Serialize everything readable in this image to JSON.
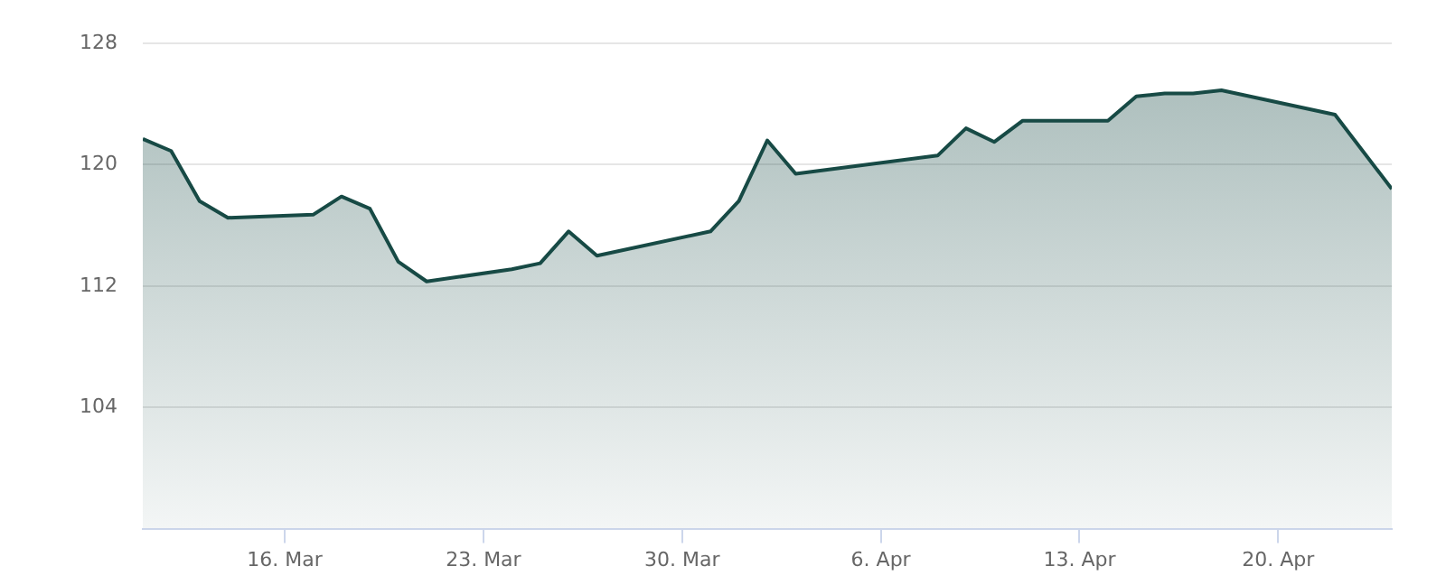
{
  "chart_data": {
    "type": "area",
    "x": [
      "--03-11",
      "--03-12",
      "--03-13",
      "--03-14",
      "--03-17",
      "--03-18",
      "--03-19",
      "--03-20",
      "--03-21",
      "--03-24",
      "--03-25",
      "--03-26",
      "--03-27",
      "--03-31",
      "--04-01",
      "--04-02",
      "--04-03",
      "--04-08",
      "--04-09",
      "--04-10",
      "--04-11",
      "--04-14",
      "--04-15",
      "--04-16",
      "--04-17",
      "--04-18",
      "--04-22",
      "--04-24"
    ],
    "series": [
      {
        "color": "#174a45",
        "values": [
          121.7,
          120.9,
          117.6,
          116.5,
          116.7,
          117.9,
          117.1,
          113.6,
          112.3,
          113.1,
          113.5,
          115.6,
          114.0,
          115.6,
          117.6,
          121.6,
          119.4,
          120.6,
          122.4,
          121.5,
          122.9,
          122.9,
          124.5,
          124.7,
          124.7,
          124.9,
          123.3,
          118.4
        ]
      }
    ],
    "xlim": [
      "--03-11",
      "--04-24"
    ],
    "ylim": [
      96,
      128
    ],
    "xticks": [
      {
        "value": "--03-16",
        "label": "16. Mar"
      },
      {
        "value": "--03-23",
        "label": "23. Mar"
      },
      {
        "value": "--03-30",
        "label": "30. Mar"
      },
      {
        "value": "--04-06",
        "label": "6. Apr"
      },
      {
        "value": "--04-13",
        "label": "13. Apr"
      },
      {
        "value": "--04-20",
        "label": "20. Apr"
      }
    ],
    "yticks": [
      104,
      112,
      120,
      128
    ],
    "grid": "y",
    "legend": false,
    "marker": "none",
    "line_style": "solid"
  }
}
